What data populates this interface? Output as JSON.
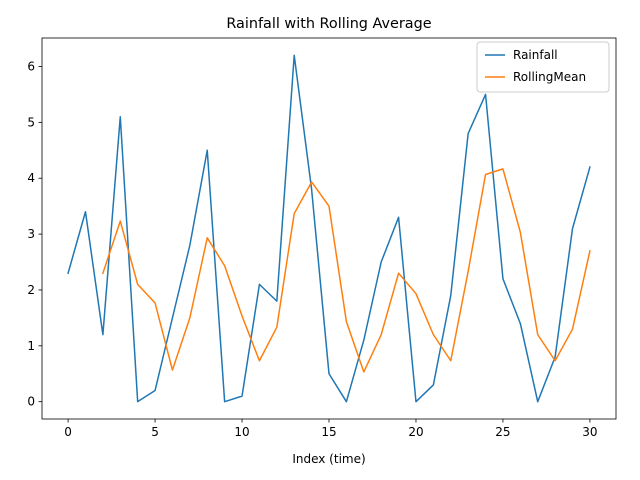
{
  "chart_data": {
    "type": "line",
    "title": "Rainfall with Rolling Average",
    "xlabel": "Index (time)",
    "ylabel": "",
    "xlim": [
      -1.5,
      31.5
    ],
    "ylim": [
      -0.31,
      6.51
    ],
    "x_ticks": [
      0,
      5,
      10,
      15,
      20,
      25,
      30
    ],
    "y_ticks": [
      0,
      1,
      2,
      3,
      4,
      5,
      6
    ],
    "legend_position": "top-right",
    "grid": false,
    "series": [
      {
        "name": "Rainfall",
        "color": "#1f77b4",
        "x": [
          0,
          1,
          2,
          3,
          4,
          5,
          6,
          7,
          8,
          9,
          10,
          11,
          12,
          13,
          14,
          15,
          16,
          17,
          18,
          19,
          20,
          21,
          22,
          23,
          24,
          25,
          26,
          27,
          28,
          29,
          30
        ],
        "values": [
          2.3,
          3.4,
          1.2,
          5.1,
          0.0,
          0.2,
          1.5,
          2.8,
          4.5,
          0.0,
          0.1,
          2.1,
          1.8,
          6.2,
          3.8,
          0.5,
          0.0,
          1.1,
          2.5,
          3.3,
          0.0,
          0.3,
          1.9,
          4.8,
          5.5,
          2.2,
          1.4,
          0.0,
          0.8,
          3.1,
          4.2
        ]
      },
      {
        "name": "RollingMean",
        "color": "#ff7f0e",
        "x": [
          2,
          3,
          4,
          5,
          6,
          7,
          8,
          9,
          10,
          11,
          12,
          13,
          14,
          15,
          16,
          17,
          18,
          19,
          20,
          21,
          22,
          23,
          24,
          25,
          26,
          27,
          28,
          29,
          30
        ],
        "values": [
          2.3,
          3.233,
          2.1,
          1.767,
          0.567,
          1.5,
          2.933,
          2.433,
          1.533,
          0.733,
          1.333,
          3.367,
          3.933,
          3.5,
          1.433,
          0.533,
          1.2,
          2.3,
          1.933,
          1.2,
          0.733,
          2.333,
          4.067,
          4.167,
          3.033,
          1.2,
          0.733,
          1.3,
          2.7
        ]
      }
    ]
  }
}
